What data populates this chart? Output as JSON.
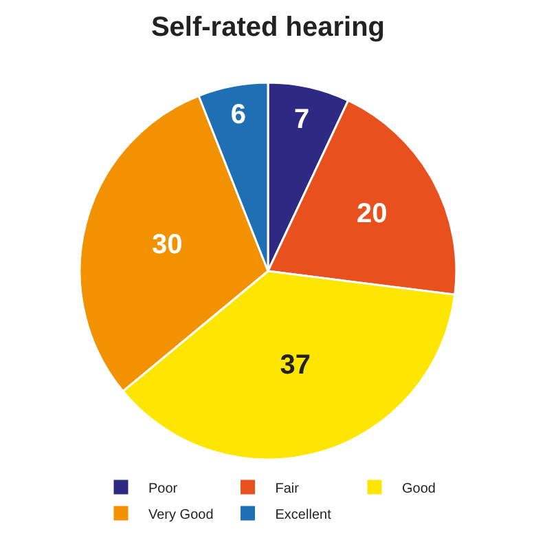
{
  "chart_data": {
    "type": "pie",
    "title": "Self-rated hearing",
    "categories": [
      "Poor",
      "Fair",
      "Good",
      "Very Good",
      "Excellent"
    ],
    "values": [
      7,
      20,
      37,
      30,
      6
    ],
    "colors": [
      "#2e2a84",
      "#e8501e",
      "#ffe600",
      "#f39200",
      "#1f6fb4"
    ],
    "data_labels": true,
    "legend": "bottom"
  }
}
